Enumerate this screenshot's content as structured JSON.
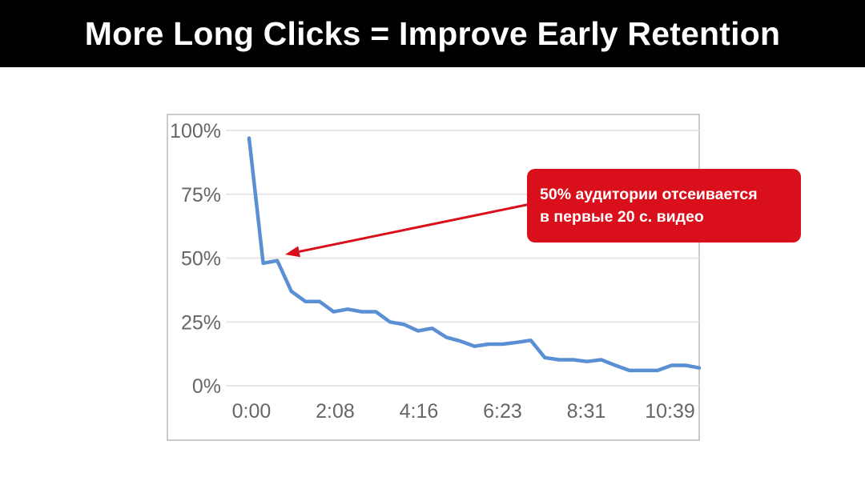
{
  "slide": {
    "title": "More Long Clicks = Improve Early Retention"
  },
  "callout": {
    "line1": "50% аудитории отсеивается",
    "line2": "в первые 20 с. видео",
    "color": "#d9101b"
  },
  "colors": {
    "title_bar": "#000000",
    "line": "#5b8fd4",
    "arrow": "#d9101b",
    "grid": "#e6e6e6",
    "tick_text": "#666666"
  },
  "chart_data": {
    "type": "line",
    "title": "",
    "xlabel": "",
    "ylabel": "",
    "x_ticks": [
      "0:00",
      "2:08",
      "4:16",
      "6:23",
      "8:31",
      "10:39"
    ],
    "y_ticks": [
      "100%",
      "75%",
      "50%",
      "25%",
      "0%"
    ],
    "ylim": [
      0,
      100
    ],
    "xlim_seconds": [
      0,
      703
    ],
    "grid": true,
    "series": [
      {
        "x_seconds": [
          0,
          22,
          44,
          66,
          88,
          110,
          132,
          154,
          176,
          198,
          220,
          242,
          264,
          286,
          308,
          330,
          352,
          374,
          396,
          418,
          440,
          462,
          484,
          506,
          528,
          550,
          572,
          594,
          616,
          638,
          660,
          682,
          703
        ],
        "y_percent": [
          97,
          48,
          49,
          37,
          33,
          33,
          29,
          30,
          29,
          29,
          25,
          24,
          21.5,
          22.5,
          19,
          17.5,
          15.5,
          16.3,
          16.3,
          17,
          17.8,
          11,
          10.2,
          10.2,
          9.5,
          10.2,
          8,
          6,
          6,
          6,
          8,
          8,
          7
        ]
      }
    ]
  }
}
